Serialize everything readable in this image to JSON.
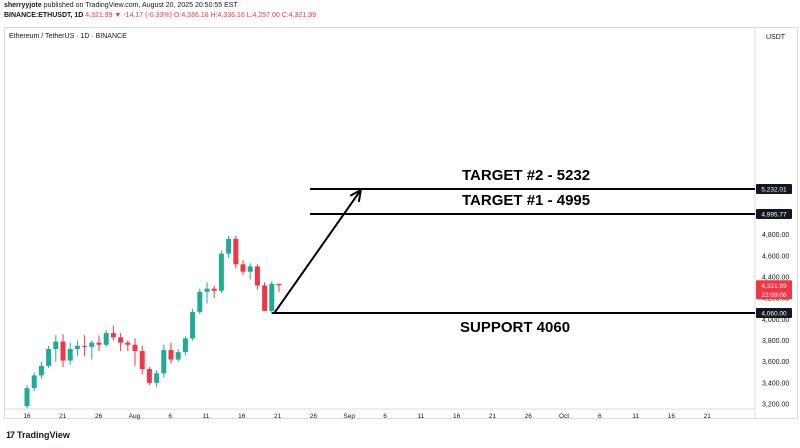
{
  "header": {
    "line1_user": "sherryyjote",
    "line1_rest": " published on TradingView.com, August 20, 2025 20:50:55 EST",
    "line2_symbol": "BINANCE:ETHUSDT, 1D",
    "line2_values": " 4,321.99 ▼ -14.17 (-0.33%) O:4,336.16 H:4,336.16 L:4,257.00 C:4,321.99"
  },
  "symbol_label": "Ethereum / TetherUS · 1D · BINANCE",
  "footer_brand": "TradingView",
  "footer_logo": "17",
  "colors": {
    "up": "#22ab94",
    "down": "#f23645",
    "line": "#000000",
    "axis_text": "#131722"
  },
  "chart_data": {
    "type": "candlestick",
    "currency": "USDT",
    "y_ticks": [
      3200,
      3400,
      3600,
      3800,
      4000,
      4200,
      4400,
      4600,
      4800,
      5000,
      5200,
      5400
    ],
    "y_tick_labels": [
      "3,200.00",
      "3,400.00",
      "3,600.00",
      "3,800.00",
      "4,000.00",
      "4,200.00",
      "4,400.00",
      "4,600.00",
      "4,800.00",
      "",
      "",
      ""
    ],
    "x_tick_labels": [
      "16",
      "21",
      "26",
      "Aug",
      "6",
      "11",
      "16",
      "21",
      "26",
      "Sep",
      "6",
      "11",
      "16",
      "21",
      "26",
      "Oct",
      "6",
      "11",
      "16",
      "21"
    ],
    "candles": [
      {
        "o": 3180,
        "h": 3380,
        "l": 3160,
        "c": 3350
      },
      {
        "o": 3350,
        "h": 3500,
        "l": 3320,
        "c": 3470
      },
      {
        "o": 3470,
        "h": 3600,
        "l": 3440,
        "c": 3560
      },
      {
        "o": 3560,
        "h": 3750,
        "l": 3540,
        "c": 3720
      },
      {
        "o": 3720,
        "h": 3850,
        "l": 3600,
        "c": 3790
      },
      {
        "o": 3790,
        "h": 3860,
        "l": 3550,
        "c": 3610
      },
      {
        "o": 3610,
        "h": 3780,
        "l": 3570,
        "c": 3720
      },
      {
        "o": 3720,
        "h": 3800,
        "l": 3650,
        "c": 3750
      },
      {
        "o": 3750,
        "h": 3850,
        "l": 3650,
        "c": 3740
      },
      {
        "o": 3740,
        "h": 3800,
        "l": 3620,
        "c": 3780
      },
      {
        "o": 3780,
        "h": 3850,
        "l": 3700,
        "c": 3760
      },
      {
        "o": 3760,
        "h": 3900,
        "l": 3740,
        "c": 3870
      },
      {
        "o": 3870,
        "h": 3941,
        "l": 3800,
        "c": 3830
      },
      {
        "o": 3830,
        "h": 3870,
        "l": 3700,
        "c": 3780
      },
      {
        "o": 3780,
        "h": 3800,
        "l": 3700,
        "c": 3760
      },
      {
        "o": 3760,
        "h": 3820,
        "l": 3560,
        "c": 3700
      },
      {
        "o": 3700,
        "h": 3750,
        "l": 3480,
        "c": 3530
      },
      {
        "o": 3530,
        "h": 3550,
        "l": 3380,
        "c": 3400
      },
      {
        "o": 3400,
        "h": 3520,
        "l": 3360,
        "c": 3490
      },
      {
        "o": 3490,
        "h": 3760,
        "l": 3450,
        "c": 3710
      },
      {
        "o": 3710,
        "h": 3780,
        "l": 3580,
        "c": 3620
      },
      {
        "o": 3620,
        "h": 3720,
        "l": 3600,
        "c": 3690
      },
      {
        "o": 3690,
        "h": 3840,
        "l": 3660,
        "c": 3820
      },
      {
        "o": 3820,
        "h": 4100,
        "l": 3800,
        "c": 4070
      },
      {
        "o": 4070,
        "h": 4290,
        "l": 4050,
        "c": 4260
      },
      {
        "o": 4260,
        "h": 4350,
        "l": 4150,
        "c": 4290
      },
      {
        "o": 4290,
        "h": 4320,
        "l": 4200,
        "c": 4270
      },
      {
        "o": 4270,
        "h": 4650,
        "l": 4250,
        "c": 4620
      },
      {
        "o": 4620,
        "h": 4790,
        "l": 4580,
        "c": 4760
      },
      {
        "o": 4760,
        "h": 4790,
        "l": 4480,
        "c": 4520
      },
      {
        "o": 4520,
        "h": 4560,
        "l": 4420,
        "c": 4450
      },
      {
        "o": 4450,
        "h": 4530,
        "l": 4380,
        "c": 4500
      },
      {
        "o": 4500,
        "h": 4520,
        "l": 4280,
        "c": 4320
      },
      {
        "o": 4320,
        "h": 4350,
        "l": 4080,
        "c": 4080
      },
      {
        "o": 4080,
        "h": 4360,
        "l": 4060,
        "c": 4336
      },
      {
        "o": 4336,
        "h": 4336,
        "l": 4257,
        "c": 4322
      }
    ],
    "levels": [
      {
        "name": "target2",
        "value": 5232,
        "text": "TARGET #2 - 5232",
        "axis_label": "5,232.01"
      },
      {
        "name": "target1",
        "value": 4995,
        "text": "TARGET #1 - 4995",
        "axis_label": "4,995.77"
      },
      {
        "name": "support",
        "value": 4060,
        "text": "SUPPORT 4060",
        "axis_label": "4,060.00"
      }
    ],
    "current_price": {
      "value": 4321.99,
      "label": "4,321.99",
      "countdown": "22:09:06"
    },
    "arrow": {
      "from_index": 34.5,
      "from_value": 4060,
      "to_index": 46.5,
      "to_value": 5232
    }
  }
}
